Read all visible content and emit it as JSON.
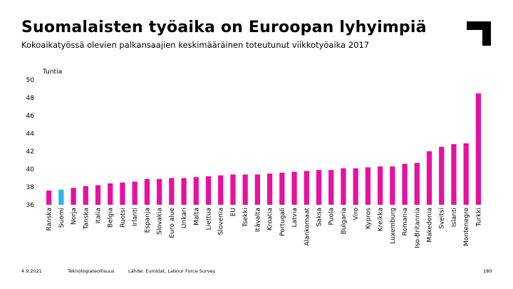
{
  "header": {
    "title": "Suomalaisten työaika on Euroopan lyhyimpiä",
    "subtitle": "Kokoaikatyössä olevien palkansaajien keskimääräinen toteutunut viikkotyöaika 2017"
  },
  "footer": {
    "date": "4.9.2021",
    "org": "Teknologiateollisuus",
    "source": "Lähde: Eurostat, Labour Force Survey",
    "page": "180"
  },
  "colors": {
    "bar": "#e6119e",
    "highlight": "#29b6e8",
    "text": "#000000"
  },
  "chart_data": {
    "type": "bar",
    "ylabel": "Tuntia",
    "ylim": [
      36,
      50
    ],
    "yticks": [
      36,
      38,
      40,
      42,
      44,
      46,
      48,
      50
    ],
    "grid": false,
    "highlight_category": "Suomi",
    "categories": [
      "Ranska",
      "Suomi",
      "Norja",
      "Tanska",
      "Italia",
      "Belgia",
      "Ruotsi",
      "Irlanti",
      "Espanja",
      "Slovakia",
      "Euro alue",
      "Unkari",
      "Malta",
      "Liettua",
      "Slovenia",
      "EU",
      "Tsekki",
      "Itävalta",
      "Kroatia",
      "Portugali",
      "Latvia",
      "Alankomaat",
      "Saksa",
      "Puola",
      "Bulgaria",
      "Viro",
      "Kypros",
      "Kreikka",
      "Luxemburg",
      "Romania",
      "Iso-Britannia",
      "Makedonia",
      "Sveitsi",
      "Islanti",
      "Montenegro",
      "Turkki"
    ],
    "values": [
      37.6,
      37.7,
      37.9,
      38.1,
      38.2,
      38.4,
      38.5,
      38.6,
      38.9,
      38.9,
      39.0,
      39.0,
      39.1,
      39.2,
      39.3,
      39.4,
      39.4,
      39.4,
      39.5,
      39.6,
      39.7,
      39.8,
      39.9,
      39.9,
      40.1,
      40.1,
      40.2,
      40.3,
      40.3,
      40.6,
      40.7,
      42.0,
      42.5,
      42.8,
      42.9,
      48.5
    ]
  }
}
